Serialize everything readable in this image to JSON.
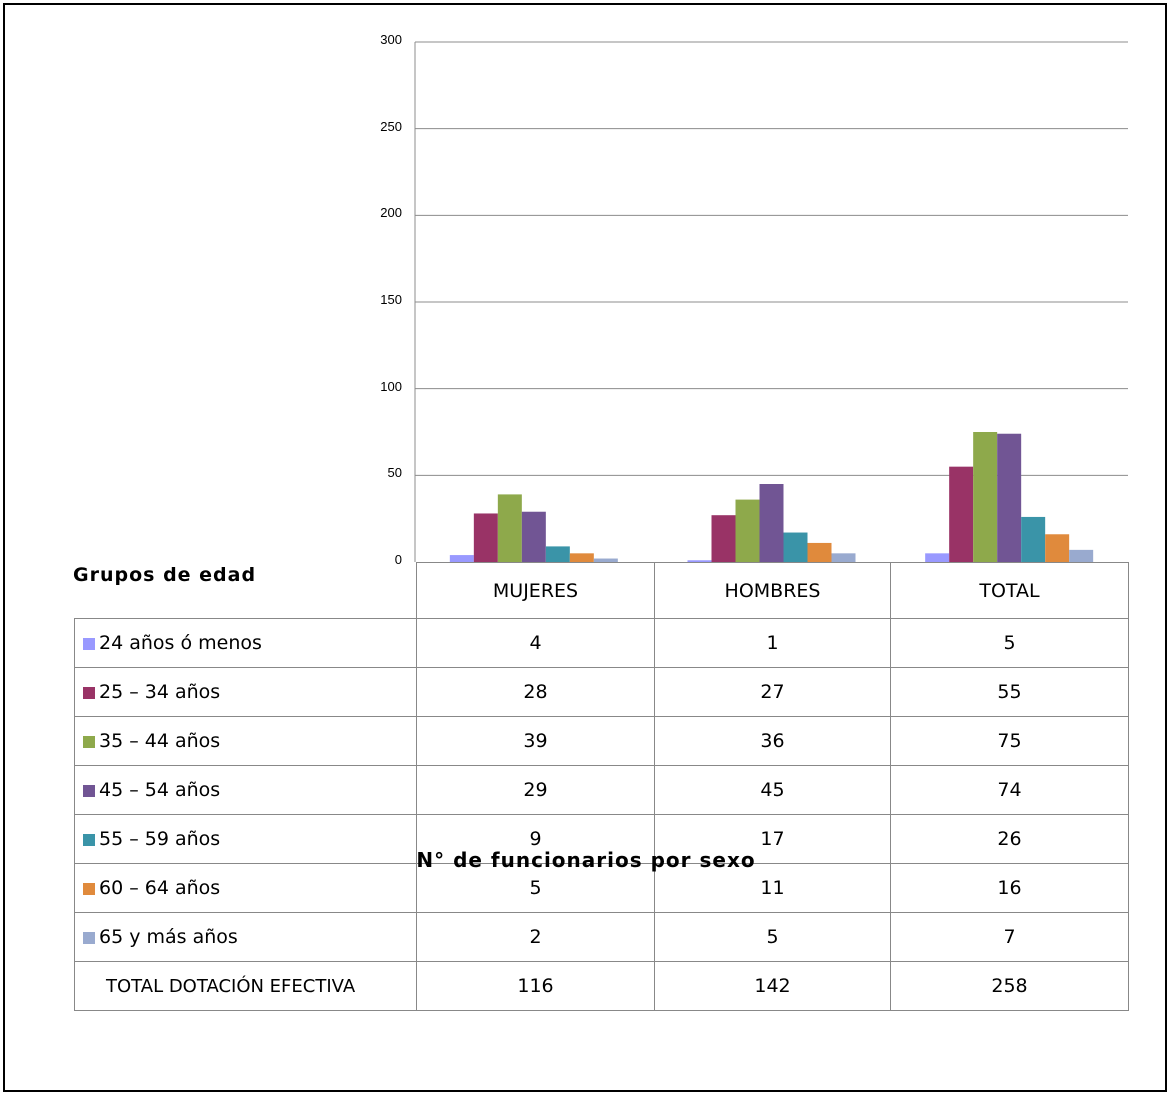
{
  "chart_data": {
    "type": "bar",
    "categories": [
      "MUJERES",
      "HOMBRES",
      "TOTAL"
    ],
    "series": [
      {
        "name": "24 años ó menos",
        "color": "#9999ff",
        "values": [
          4,
          1,
          5
        ]
      },
      {
        "name": "25 – 34 años",
        "color": "#993366",
        "values": [
          28,
          27,
          55
        ]
      },
      {
        "name": "35 – 44 años",
        "color": "#8ea94b",
        "values": [
          39,
          36,
          75
        ]
      },
      {
        "name": "45 – 54 años",
        "color": "#715594",
        "values": [
          29,
          45,
          74
        ]
      },
      {
        "name": "55 – 59 años",
        "color": "#3a94a8",
        "values": [
          9,
          17,
          26
        ]
      },
      {
        "name": "60 – 64 años",
        "color": "#e08a3c",
        "values": [
          5,
          11,
          16
        ]
      },
      {
        "name": "65  y más años",
        "color": "#99aacf",
        "values": [
          2,
          5,
          7
        ]
      }
    ],
    "totals": {
      "label": "TOTAL DOTACIÓN EFECTIVA",
      "values": [
        116,
        142,
        258
      ]
    },
    "yticks": [
      "0",
      "50",
      "100",
      "150",
      "200",
      "250",
      "300"
    ],
    "ylim": [
      0,
      300
    ],
    "grid": true,
    "row_header": "Grupos de edad",
    "xlabel": "N° de funcionarios por sexo",
    "legend": "data-table"
  }
}
